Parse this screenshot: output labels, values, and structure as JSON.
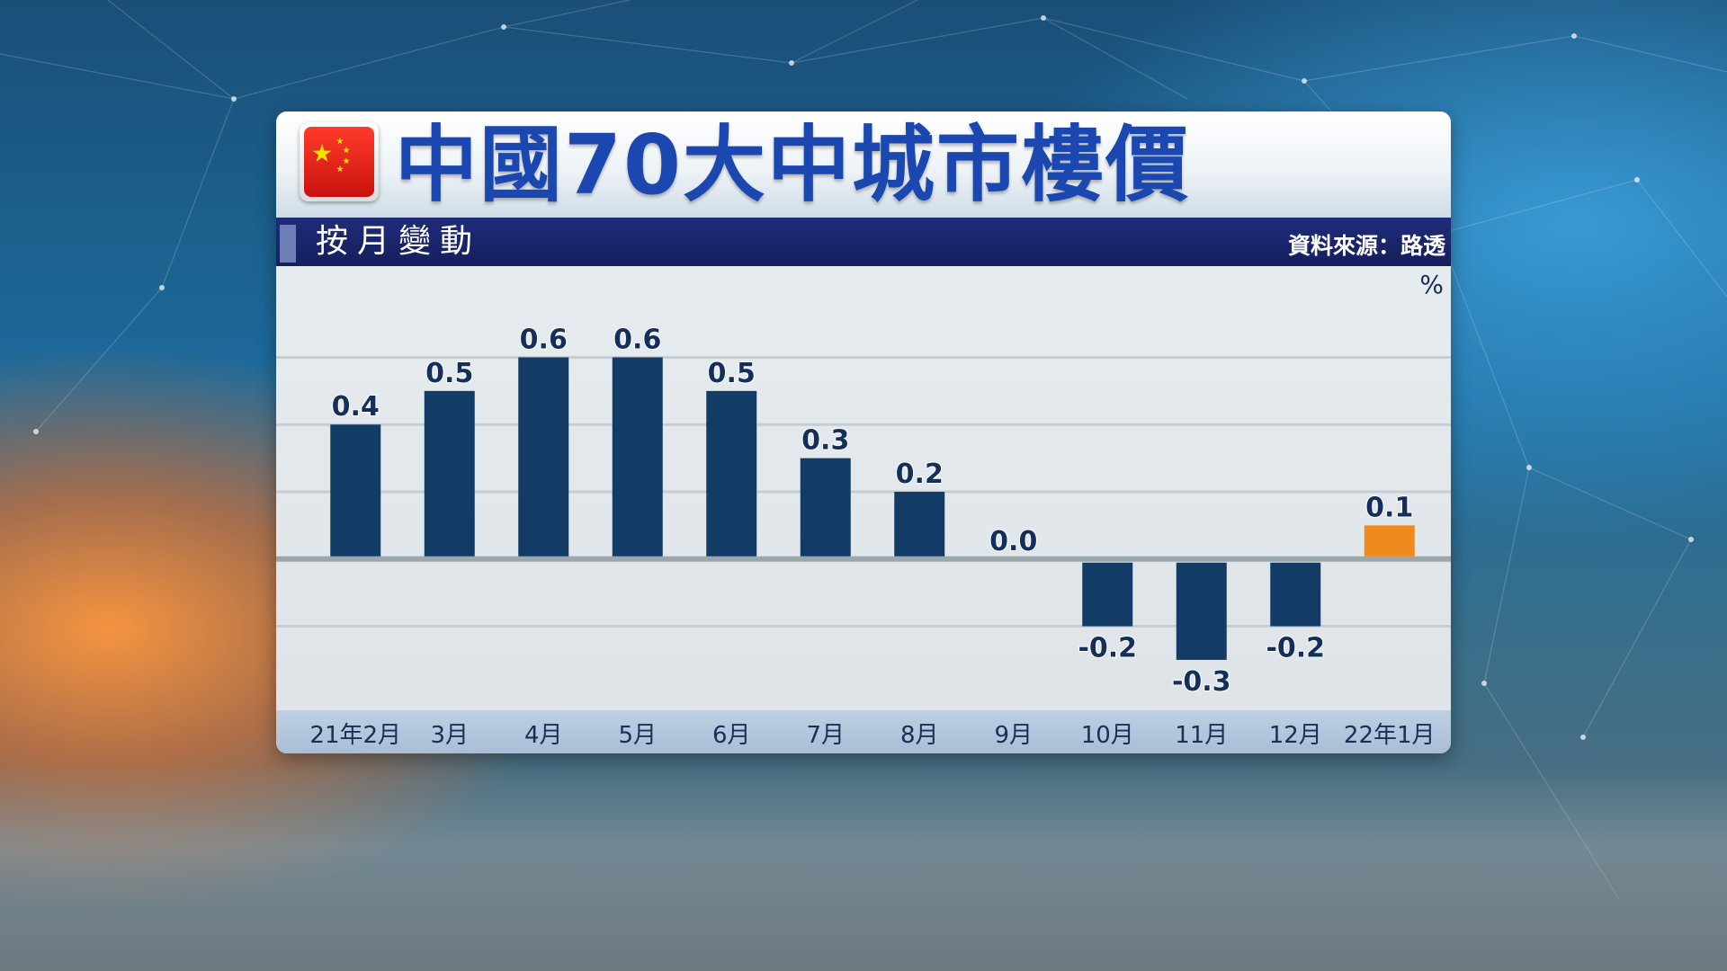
{
  "title": "中國70大中城市樓價",
  "subtitle": "按月變動",
  "source": "資料來源：路透",
  "unit_label": "%",
  "flag_icon": "china-flag-icon",
  "colors": {
    "title": "#1a47b0",
    "bar": "#123c66",
    "bar_highlight": "#f08a1c",
    "label": "#14305a",
    "band": "#1f2c78"
  },
  "chart_data": {
    "type": "bar",
    "categories": [
      "21年2月",
      "3月",
      "4月",
      "5月",
      "6月",
      "7月",
      "8月",
      "9月",
      "10月",
      "11月",
      "12月",
      "22年1月"
    ],
    "values": [
      0.4,
      0.5,
      0.6,
      0.6,
      0.5,
      0.3,
      0.2,
      0.0,
      -0.2,
      -0.3,
      -0.2,
      0.1
    ],
    "value_labels": [
      "0.4",
      "0.5",
      "0.6",
      "0.6",
      "0.5",
      "0.3",
      "0.2",
      "0.0",
      "-0.2",
      "-0.3",
      "-0.2",
      "0.1"
    ],
    "highlight_index": 11,
    "ylim": [
      -0.45,
      0.85
    ],
    "grid": true,
    "legend": "none"
  }
}
